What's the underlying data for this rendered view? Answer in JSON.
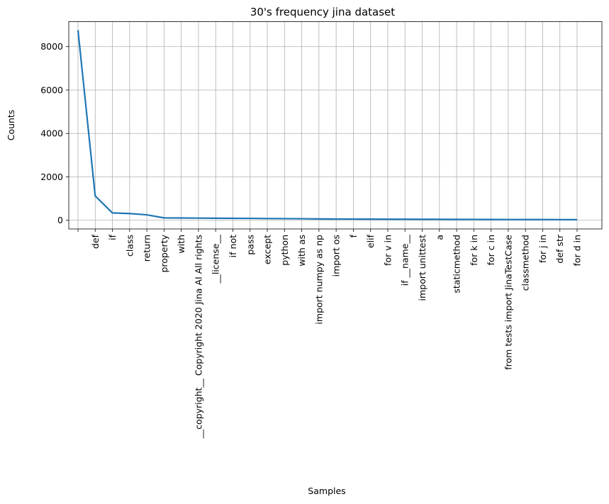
{
  "chart_data": {
    "type": "line",
    "title": "30's frequency jina dataset",
    "xlabel": "Samples",
    "ylabel": "Counts",
    "ylim": [
      -400,
      9150
    ],
    "yticks": [
      0,
      2000,
      4000,
      6000,
      8000
    ],
    "grid": true,
    "line_color": "#1f77b4",
    "grid_color": "#b0b0b0",
    "categories": [
      "",
      "def",
      "if",
      "class",
      "return",
      "property",
      "with",
      "__copyright__  Copyright  2020  Jina  AI  All  rights",
      "__license__",
      "if  not",
      "pass",
      "except",
      "python",
      "with  as",
      "import  numpy  as  np",
      "import  os",
      "f",
      "elif",
      "for  v  in",
      "if  __name__",
      "import  unittest",
      "a",
      "staticmethod",
      "for  k  in",
      "for  c  in",
      "from  tests  import  JinaTestCase",
      "classmethod",
      "for  j  in",
      "def  str",
      "for  d  in"
    ],
    "values": [
      8760,
      1120,
      340,
      310,
      250,
      110,
      105,
      100,
      95,
      90,
      88,
      80,
      75,
      72,
      60,
      58,
      55,
      52,
      50,
      48,
      46,
      44,
      40,
      38,
      36,
      35,
      33,
      32,
      30,
      28
    ]
  }
}
